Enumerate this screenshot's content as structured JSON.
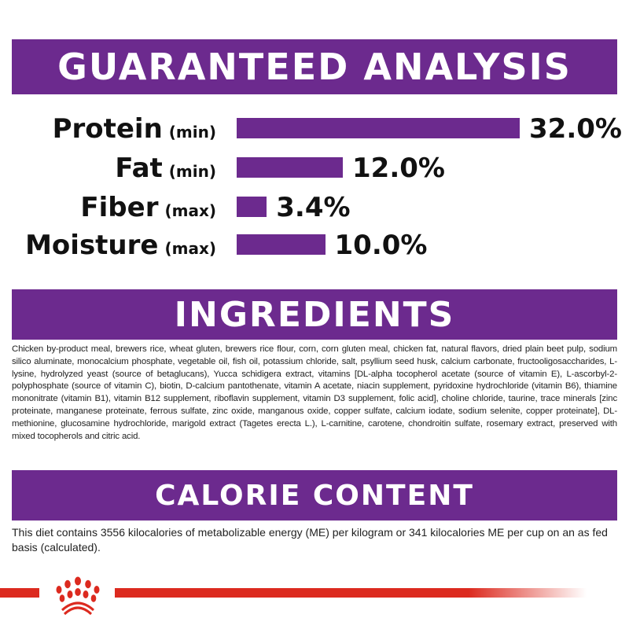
{
  "guaranteed_analysis": {
    "title": "GUARANTEED ANALYSIS",
    "rows": [
      {
        "name": "Protein",
        "qualifier": "(min)",
        "value_text": "32.0%",
        "value": 32.0
      },
      {
        "name": "Fat",
        "qualifier": "(min)",
        "value_text": "12.0%",
        "value": 12.0
      },
      {
        "name": "Fiber",
        "qualifier": "(max)",
        "value_text": "3.4%",
        "value": 3.4
      },
      {
        "name": "Moisture",
        "qualifier": "(max)",
        "value_text": "10.0%",
        "value": 10.0
      }
    ]
  },
  "ingredients": {
    "title": "INGREDIENTS",
    "text": "Chicken by-product meal, brewers rice, wheat gluten, brewers rice flour, corn, corn gluten meal, chicken fat, natural flavors, dried plain beet pulp, sodium silico aluminate, monocalcium phosphate, vegetable oil, fish oil, potassium chloride, salt, psyllium seed husk, calcium carbonate, fructooligosaccharides, L-lysine, hydrolyzed yeast (source of betaglucans), Yucca schidigera extract, vitamins [DL-alpha tocopherol acetate (source of vitamin E), L-ascorbyl-2-polyphosphate (source of vitamin C), biotin, D-calcium pantothenate, vitamin A acetate, niacin supplement, pyridoxine hydrochloride (vitamin B6), thiamine mononitrate (vitamin B1), vitamin B12 supplement, riboflavin supplement, vitamin D3 supplement, folic acid], choline chloride, taurine, trace minerals [zinc proteinate, manganese proteinate, ferrous sulfate, zinc oxide, manganous oxide, copper sulfate, calcium iodate, sodium selenite, copper proteinate], DL-methionine, glucosamine hydrochloride, marigold extract (Tagetes erecta L.), L-carnitine, carotene, chondroitin sulfate, rosemary extract, preserved with mixed tocopherols and citric acid."
  },
  "calorie_content": {
    "title": "CALORIE CONTENT",
    "text": "This diet contains 3556 kilocalories of metabolizable energy (ME) per kilogram or 341 kilocalories ME per cup on an as fed basis (calculated)."
  },
  "colors": {
    "banner": "#6c2a8e",
    "brand_red": "#dc2a1f"
  },
  "footer": {
    "logo": "royal-canin-crown-icon"
  }
}
